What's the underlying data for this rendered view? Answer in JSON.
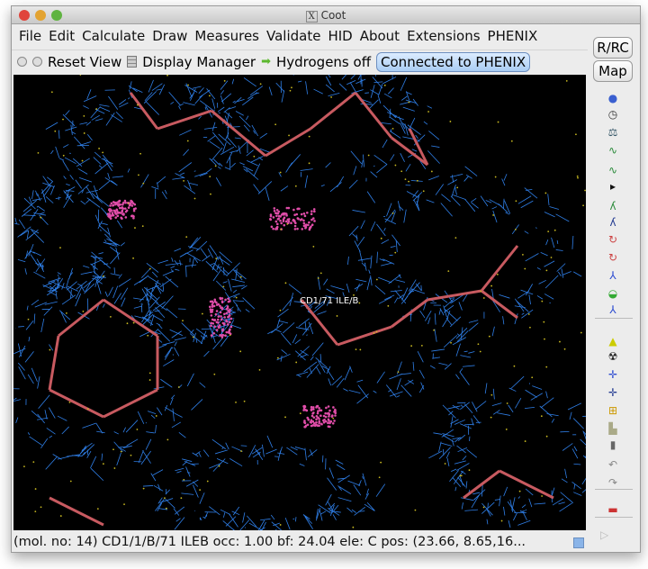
{
  "window": {
    "title": "Coot",
    "title_icon": "x11-icon"
  },
  "menubar": {
    "items": [
      "File",
      "Edit",
      "Calculate",
      "Draw",
      "Measures",
      "Validate",
      "HID",
      "About",
      "Extensions",
      "PHENIX"
    ]
  },
  "toolbar": {
    "reset_view": "Reset View",
    "display_manager": "Display Manager",
    "hydrogens": "Hydrogens off",
    "phenix": "Connected to PHENIX"
  },
  "side": {
    "rrc": "R/RC",
    "map": "Map",
    "icons": [
      "sphere-refine-icon",
      "clock-icon",
      "rigid-body-icon",
      "real-space-refine-icon",
      "regularize-icon",
      "more-arrow-icon",
      "auto-fit-rotamer-icon",
      "rotamer-icon",
      "edit-chi-icon",
      "torsion-icon",
      "pepflip-icon",
      "add-water-icon",
      "side-chain-180-icon",
      "add-alt-conf-icon",
      "mutate-icon",
      "add-atom-icon",
      "add-residue-icon",
      "centre-icon",
      "stamp-icon",
      "delete-icon",
      "undo-icon",
      "redo-icon",
      "flag-icon"
    ]
  },
  "canvas": {
    "atom_label": "CD1/71 ILE/B"
  },
  "status": {
    "text": "(mol. no: 14)  CD1/1/B/71 ILEB occ:  1.00 bf: 24.04 ele:  C pos: (23.66, 8.65,16..."
  },
  "colors": {
    "mesh": "#2f7fe8",
    "bonds": "#c85a60",
    "dots": "#e04da8",
    "bg": "#000000"
  }
}
